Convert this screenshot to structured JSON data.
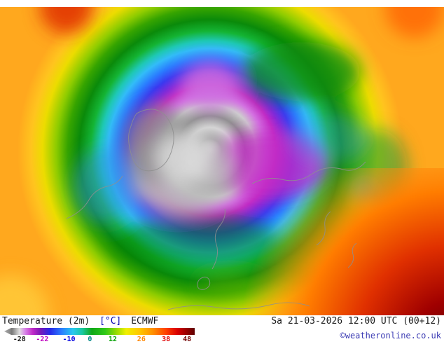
{
  "footer": {
    "title": "Temperature (2m)",
    "unit": "[°C]",
    "model": "ECMWF",
    "datetime": "Sa 21-03-2026 12:00 UTC (00+12)",
    "copyright": "©weatheronline.co.uk"
  },
  "legend": {
    "ticks": [
      {
        "label": "-28",
        "pos": 8,
        "color": "#1a1a1a"
      },
      {
        "label": "-22",
        "pos": 20,
        "color": "#c000c0"
      },
      {
        "label": "-10",
        "pos": 34,
        "color": "#0000e0"
      },
      {
        "label": "0",
        "pos": 45,
        "color": "#008888"
      },
      {
        "label": "12",
        "pos": 57,
        "color": "#00a000"
      },
      {
        "label": "26",
        "pos": 72,
        "color": "#ff8800"
      },
      {
        "label": "38",
        "pos": 85,
        "color": "#e00000"
      },
      {
        "label": "48",
        "pos": 96,
        "color": "#700000"
      }
    ],
    "gradient": [
      {
        "stop": 0,
        "color": "#b0b0b0"
      },
      {
        "stop": 4,
        "color": "#7a7a7a"
      },
      {
        "stop": 8,
        "color": "#e0e0e0"
      },
      {
        "stop": 11,
        "color": "#d884e8"
      },
      {
        "stop": 15,
        "color": "#c028c8"
      },
      {
        "stop": 19,
        "color": "#7a18b8"
      },
      {
        "stop": 24,
        "color": "#2828e8"
      },
      {
        "stop": 30,
        "color": "#2a7cff"
      },
      {
        "stop": 36,
        "color": "#28c8f0"
      },
      {
        "stop": 41,
        "color": "#18c8a0"
      },
      {
        "stop": 46,
        "color": "#10a818"
      },
      {
        "stop": 53,
        "color": "#30c818"
      },
      {
        "stop": 59,
        "color": "#98dc00"
      },
      {
        "stop": 64,
        "color": "#f0f000"
      },
      {
        "stop": 71,
        "color": "#ffc800"
      },
      {
        "stop": 78,
        "color": "#ff9000"
      },
      {
        "stop": 85,
        "color": "#ff4000"
      },
      {
        "stop": 91,
        "color": "#d80000"
      },
      {
        "stop": 100,
        "color": "#600000"
      }
    ]
  }
}
